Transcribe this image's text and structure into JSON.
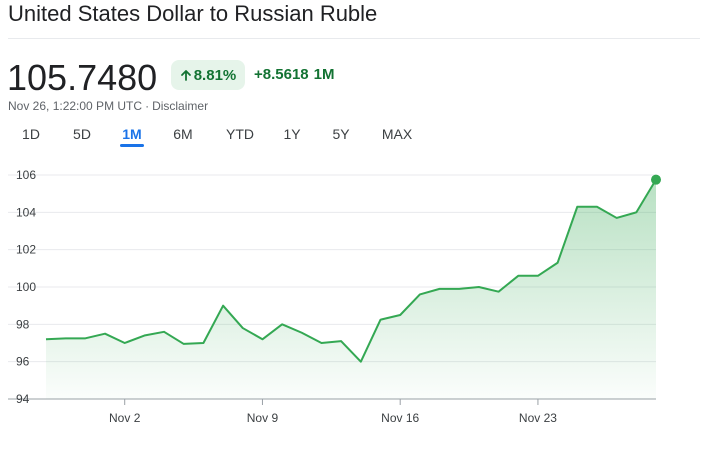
{
  "header": {
    "title": "United States Dollar to Russian Ruble"
  },
  "quote": {
    "price": "105.7480",
    "percent_change": "8.81%",
    "absolute_change": "+8.5618",
    "period": "1M",
    "timestamp": "Nov 26, 1:22:00 PM UTC",
    "separator": "·",
    "disclaimer": "Disclaimer"
  },
  "tabs": [
    {
      "label": "1D"
    },
    {
      "label": "5D"
    },
    {
      "label": "1M"
    },
    {
      "label": "6M"
    },
    {
      "label": "YTD"
    },
    {
      "label": "1Y"
    },
    {
      "label": "5Y"
    },
    {
      "label": "MAX"
    }
  ],
  "active_tab": "1M",
  "colors": {
    "accent": "#1a73e8",
    "positive": "#137333",
    "positive_bg": "#e6f4ea",
    "line": "#34a853",
    "grid": "#e8eaed"
  },
  "icons": {
    "change_arrow": "arrow-up-icon"
  },
  "chart_data": {
    "type": "area",
    "grid": true,
    "ylim": [
      94,
      106
    ],
    "yticks": [
      "94",
      "96",
      "98",
      "100",
      "102",
      "104",
      "106"
    ],
    "xticks": [
      "Nov 2",
      "Nov 9",
      "Nov 16",
      "Nov 23"
    ],
    "series": [
      {
        "values": [
          97.2,
          97.25,
          97.25,
          97.5,
          97.0,
          97.4,
          97.6,
          96.95,
          97.0,
          99.0,
          97.8,
          97.2,
          98.0,
          97.55,
          97.0,
          97.1,
          96.0,
          98.25,
          98.5,
          99.6,
          99.9,
          99.9,
          100.0,
          99.75,
          100.6,
          100.6,
          101.3,
          104.3,
          104.3,
          103.7,
          104.0,
          105.75
        ]
      }
    ]
  }
}
